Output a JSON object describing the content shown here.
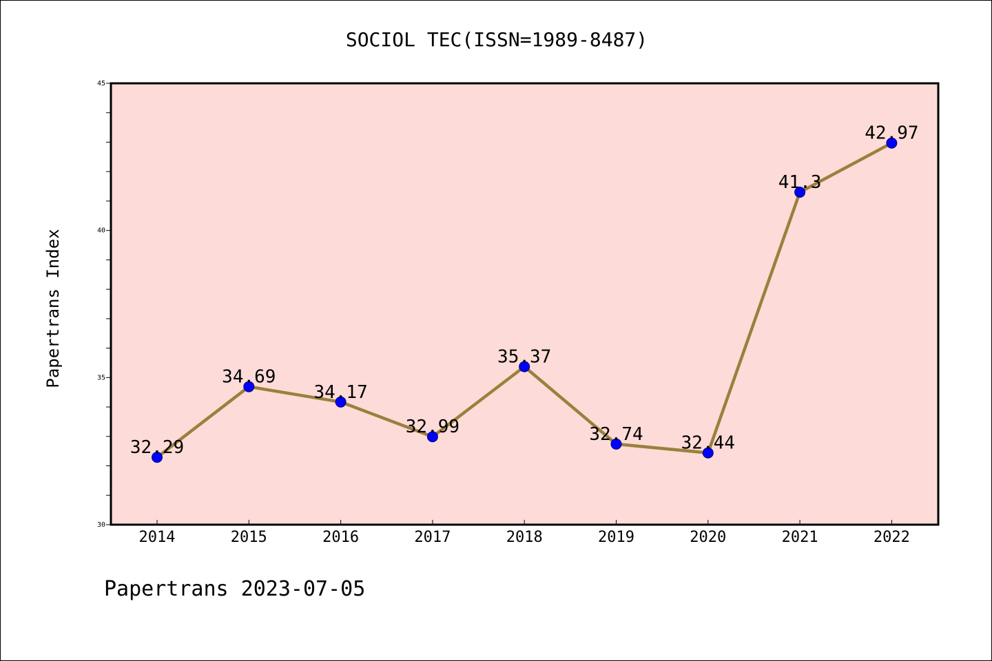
{
  "chart_data": {
    "type": "line",
    "title": "SOCIOL TEC(ISSN=1989-8487)",
    "xlabel": "",
    "ylabel": "Papertrans Index",
    "categories": [
      "2014",
      "2015",
      "2016",
      "2017",
      "2018",
      "2019",
      "2020",
      "2021",
      "2022"
    ],
    "series": [
      {
        "values": [
          32.29,
          34.69,
          34.17,
          32.99,
          35.37,
          32.74,
          32.44,
          41.3,
          42.97
        ],
        "data_labels": [
          "32.29",
          "34.69",
          "34.17",
          "32.99",
          "35.37",
          "32.74",
          "32.44",
          "41.3",
          "42.97"
        ]
      }
    ],
    "ylim": [
      30,
      45
    ],
    "yticks": [
      "30",
      "35",
      "40",
      "45"
    ],
    "grid": false,
    "legend": "none",
    "colors": {
      "plot_background": "#fddbd8",
      "line": "#9b803c",
      "marker": "#0000ff",
      "marker_edge": "#00007a"
    }
  },
  "footer": {
    "text": "Papertrans 2023-07-05"
  }
}
